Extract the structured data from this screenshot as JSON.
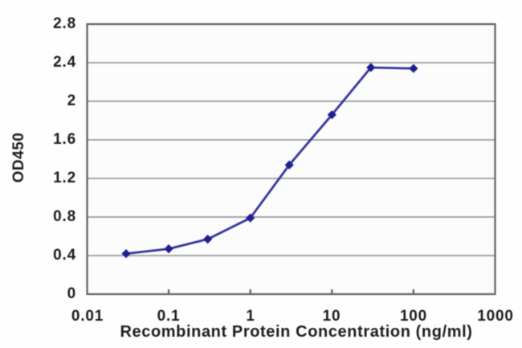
{
  "figure": {
    "description": "ELISA sigmoidal binding curve, optical density at 450 nm versus recombinant protein concentration on a log scale"
  },
  "colors": {
    "background": "#fefefe",
    "plot_background": "#fcfcfc",
    "gridline": "#9b9b9b",
    "axis_border": "#606060",
    "text": "#1c1c1c",
    "line": "#333399",
    "marker": "#1e1e8e"
  },
  "chart_data": {
    "type": "line",
    "title": "",
    "xlabel": "Recombinant Protein Concentration (ng/ml)",
    "ylabel": "OD450",
    "xscale": "log",
    "xlim": [
      0.01,
      1000
    ],
    "ylim": [
      0,
      2.8
    ],
    "grid": "horizontal",
    "legend_position": "none",
    "xticks": {
      "values": [
        0.01,
        0.1,
        1,
        10,
        100,
        1000
      ],
      "labels": [
        "0.01",
        "0.1",
        "1",
        "10",
        "100",
        "1000"
      ]
    },
    "yticks": {
      "values": [
        0,
        0.4,
        0.8,
        1.2,
        1.6,
        2,
        2.4,
        2.8
      ],
      "labels": [
        "0",
        "0.4",
        "0.8",
        "1.2",
        "1.6",
        "2",
        "2.4",
        "2.8"
      ]
    },
    "series": [
      {
        "name": "OD450",
        "marker": "diamond",
        "x": [
          0.03,
          0.1,
          0.3,
          1,
          3,
          10,
          30,
          100
        ],
        "y": [
          0.42,
          0.47,
          0.57,
          0.79,
          1.34,
          1.86,
          2.35,
          2.34
        ]
      }
    ]
  }
}
